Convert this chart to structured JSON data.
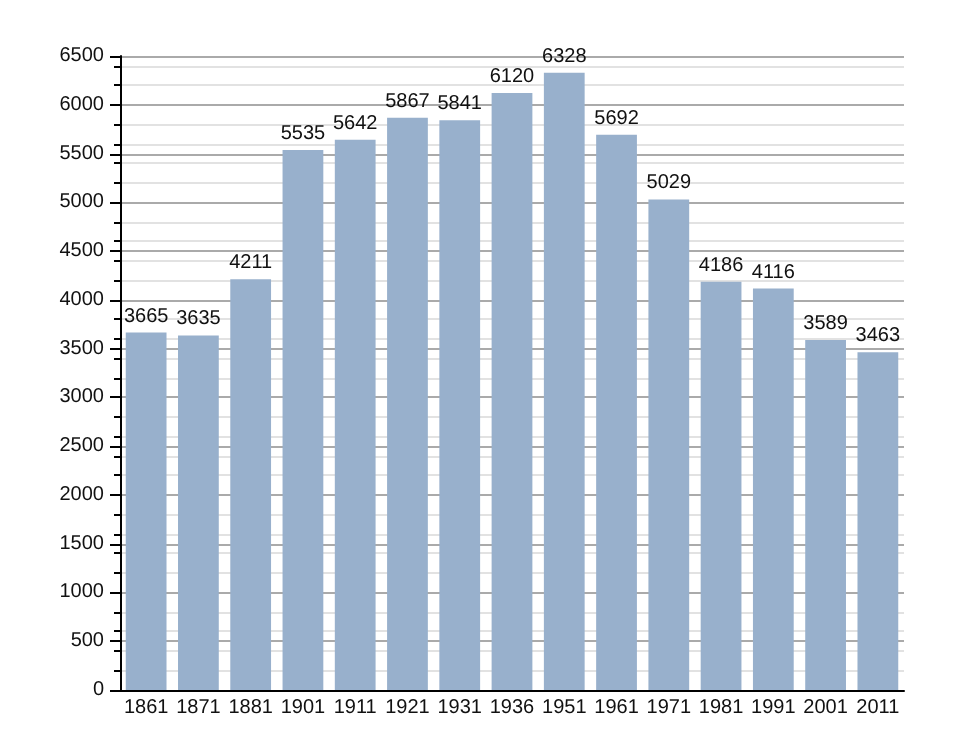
{
  "chart_data": {
    "type": "bar",
    "categories": [
      "1861",
      "1871",
      "1881",
      "1901",
      "1911",
      "1921",
      "1931",
      "1936",
      "1951",
      "1961",
      "1971",
      "1981",
      "1991",
      "2001",
      "2011"
    ],
    "values": [
      3665,
      3635,
      4211,
      5535,
      5642,
      5867,
      5841,
      6120,
      6328,
      5692,
      5029,
      4186,
      4116,
      3589,
      3463
    ],
    "color": "#98b0cc",
    "data_labels": true,
    "grid": "y",
    "ylim": [
      0,
      6500
    ],
    "yticks": [
      0,
      500,
      1000,
      1500,
      2000,
      2500,
      3000,
      3500,
      4000,
      4500,
      5000,
      5500,
      6000,
      6500
    ]
  }
}
